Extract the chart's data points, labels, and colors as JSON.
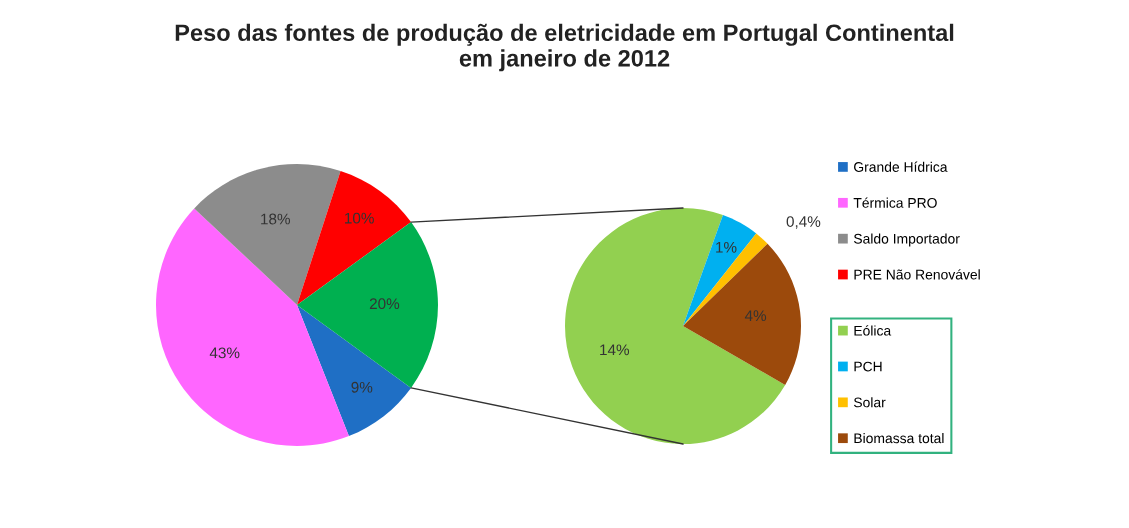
{
  "chart_data": [
    {
      "type": "pie",
      "title": "Peso das fontes de produção de eletricidade em Portugal Continental\nem janeiro de 2012",
      "categories": [
        "Grande Hídrica",
        "Térmica PRO",
        "Saldo Importador",
        "PRE Não Renovável",
        null
      ],
      "values": [
        9,
        43,
        18,
        10,
        20
      ],
      "colors": [
        "#1f6fc5",
        "#ff66ff",
        "#8c8c8c",
        "#ff0000",
        "#00b050"
      ],
      "value_labels": [
        "9%",
        "43%",
        "18%",
        "10%",
        "20%"
      ],
      "legend": "right"
    },
    {
      "type": "pie",
      "categories": [
        "Eólica",
        "PCH",
        "Solar",
        "Biomassa total"
      ],
      "values": [
        14,
        1,
        0.4,
        4
      ],
      "colors": [
        "#92d050",
        "#00b0f0",
        "#ffc000",
        "#9c4a0c"
      ],
      "value_labels": [
        "14%",
        "1%",
        "0,4%",
        "4%"
      ],
      "legend": "right"
    }
  ]
}
